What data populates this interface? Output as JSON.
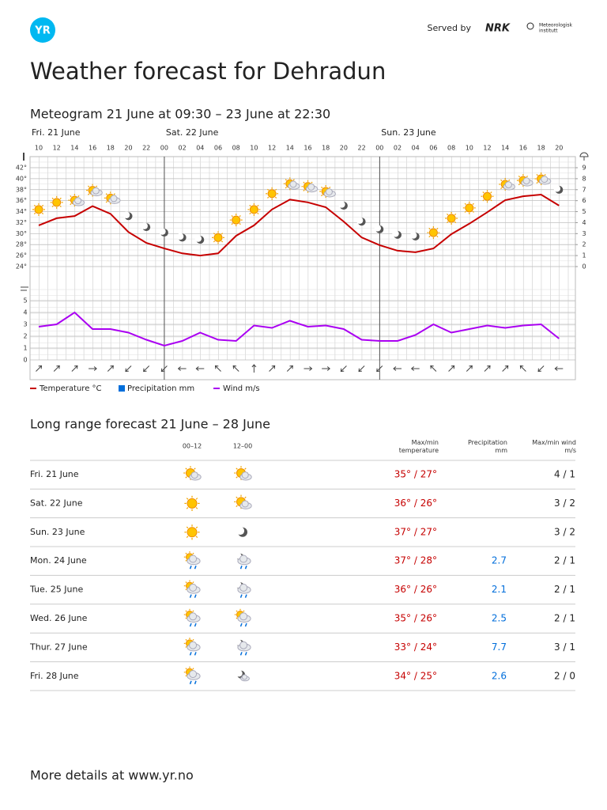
{
  "header": {
    "logo": "YR",
    "served_by": "Served by",
    "nrk": "NRK",
    "met": [
      "Meteorologisk",
      "institutt"
    ]
  },
  "title": "Weather forecast for Dehradun",
  "meteogram": {
    "subtitle": "Meteogram 21 June at 09:30 – 23 June at 22:30",
    "days": [
      {
        "label": "Fri. 21 June",
        "index": 0
      },
      {
        "label": "Sat. 22 June",
        "index": 7
      },
      {
        "label": "Sun. 23 June",
        "index": 19
      }
    ],
    "hours": [
      "10",
      "12",
      "14",
      "16",
      "18",
      "20",
      "22",
      "00",
      "02",
      "04",
      "06",
      "08",
      "10",
      "12",
      "14",
      "16",
      "18",
      "20",
      "22",
      "00",
      "02",
      "04",
      "06",
      "08",
      "10",
      "12",
      "14",
      "16",
      "18",
      "20"
    ],
    "temperature": {
      "name": "Temperature °C",
      "color": "#c60000",
      "values": [
        31.5,
        32.8,
        33.2,
        35.0,
        33.6,
        30.3,
        28.3,
        27.3,
        26.4,
        26.0,
        26.4,
        29.6,
        31.5,
        34.4,
        36.2,
        35.7,
        34.8,
        32.2,
        29.3,
        27.9,
        26.9,
        26.6,
        27.3,
        29.9,
        31.8,
        33.9,
        36.1,
        36.8,
        37.1,
        35.1
      ]
    },
    "precipitation": {
      "name": "Precipitation mm",
      "color": "#006edb"
    },
    "wind": {
      "name": "Wind m/s",
      "color": "#aa00f2",
      "values": [
        2.8,
        3.0,
        4.0,
        2.6,
        2.6,
        2.3,
        1.7,
        1.2,
        1.6,
        2.3,
        1.7,
        1.6,
        2.9,
        2.7,
        3.3,
        2.8,
        2.9,
        2.6,
        1.7,
        1.6,
        1.6,
        2.1,
        3.0,
        2.3,
        2.6,
        2.9,
        2.7,
        2.9,
        3.0,
        1.8
      ]
    },
    "wind_directions": [
      45,
      45,
      45,
      90,
      45,
      225,
      225,
      225,
      270,
      270,
      315,
      315,
      0,
      45,
      45,
      90,
      90,
      225,
      225,
      225,
      270,
      270,
      315,
      45,
      45,
      45,
      45,
      315,
      225,
      270
    ],
    "temperature_lim": [
      24,
      42
    ],
    "temperature_ticks": [
      {
        "value": 24,
        "label": "24°"
      },
      {
        "value": 26,
        "label": "26°"
      },
      {
        "value": 28,
        "label": "28°"
      },
      {
        "value": 30,
        "label": "30°"
      },
      {
        "value": 32,
        "label": "32°"
      },
      {
        "value": 34,
        "label": "34°"
      },
      {
        "value": 36,
        "label": "36°"
      },
      {
        "value": 38,
        "label": "38°"
      },
      {
        "value": 40,
        "label": "40°"
      },
      {
        "value": 42,
        "label": "42°"
      }
    ],
    "precipitation_lim": [
      0,
      9
    ],
    "precipitation_ticks": [
      0,
      1,
      2,
      3,
      4,
      5,
      6,
      7,
      8,
      9
    ],
    "wind_lim": [
      0,
      5
    ],
    "wind_ticks": [
      0,
      1,
      2,
      3,
      4,
      5
    ]
  },
  "long_range": {
    "title": "Long range forecast 21 June – 28 June",
    "columns": [
      "00–12",
      "12–00",
      "Max/min temperature",
      "Precipitation mm",
      "Max/min wind m/s"
    ],
    "rows": [
      {
        "day": "Fri. 21 June",
        "temperature": "35° / 27°",
        "wind": "4 / 1"
      },
      {
        "day": "Sat. 22 June",
        "temperature": "36° / 26°",
        "wind": "3 / 2"
      },
      {
        "day": "Sun. 23 June",
        "temperature": "37° / 27°",
        "wind": "3 / 2"
      },
      {
        "day": "Mon. 24 June",
        "temperature": "37° / 28°",
        "precipitation": "2.7",
        "wind": "2 / 1"
      },
      {
        "day": "Tue. 25 June",
        "temperature": "36° / 26°",
        "precipitation": "2.1",
        "wind": "2 / 1"
      },
      {
        "day": "Wed. 26 June",
        "temperature": "35° / 26°",
        "precipitation": "2.5",
        "wind": "2 / 1"
      },
      {
        "day": "Thur. 27 June",
        "temperature": "33° / 24°",
        "precipitation": "7.7",
        "wind": "3 / 1"
      },
      {
        "day": "Fri. 28 June",
        "temperature": "34° / 25°",
        "precipitation": "2.6",
        "wind": "2 / 0"
      }
    ]
  },
  "footer": "More details at www.yr.no"
}
